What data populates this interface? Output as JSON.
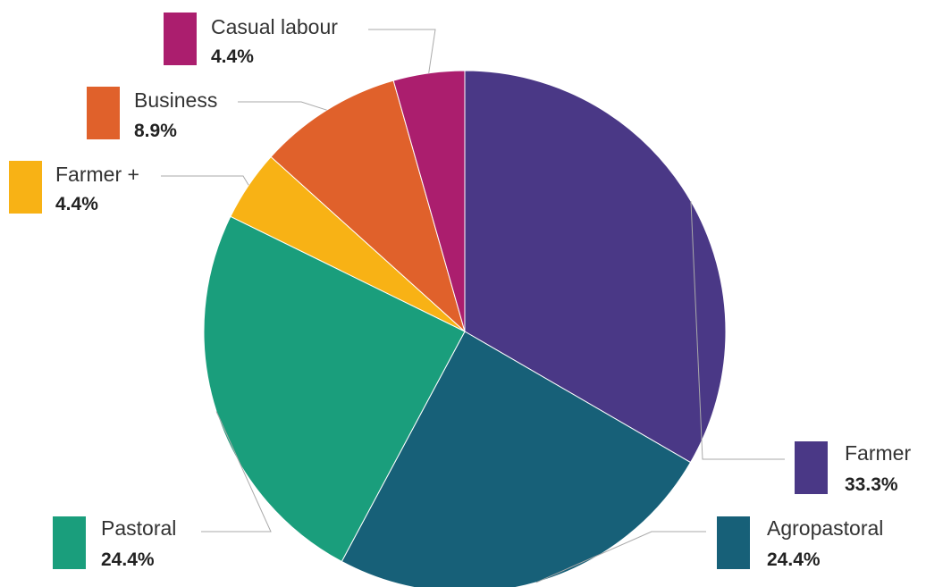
{
  "chart_data": {
    "type": "pie",
    "title": "",
    "start_angle_deg": 0,
    "direction": "clockwise",
    "slices": [
      {
        "label": "Farmer",
        "value": 33.3,
        "value_label": "33.3%",
        "color": "#4a3886"
      },
      {
        "label": "Agropastoral",
        "value": 24.4,
        "value_label": "24.4%",
        "color": "#176078"
      },
      {
        "label": "Pastoral",
        "value": 24.4,
        "value_label": "24.4%",
        "color": "#1a9e7c"
      },
      {
        "label": "Farmer +",
        "value": 4.4,
        "value_label": "4.4%",
        "color": "#f8b215"
      },
      {
        "label": "Business",
        "value": 8.9,
        "value_label": "8.9%",
        "color": "#e0612b"
      },
      {
        "label": "Casual labour",
        "value": 4.4,
        "value_label": "4.4%",
        "color": "#ab1e6e"
      }
    ]
  }
}
